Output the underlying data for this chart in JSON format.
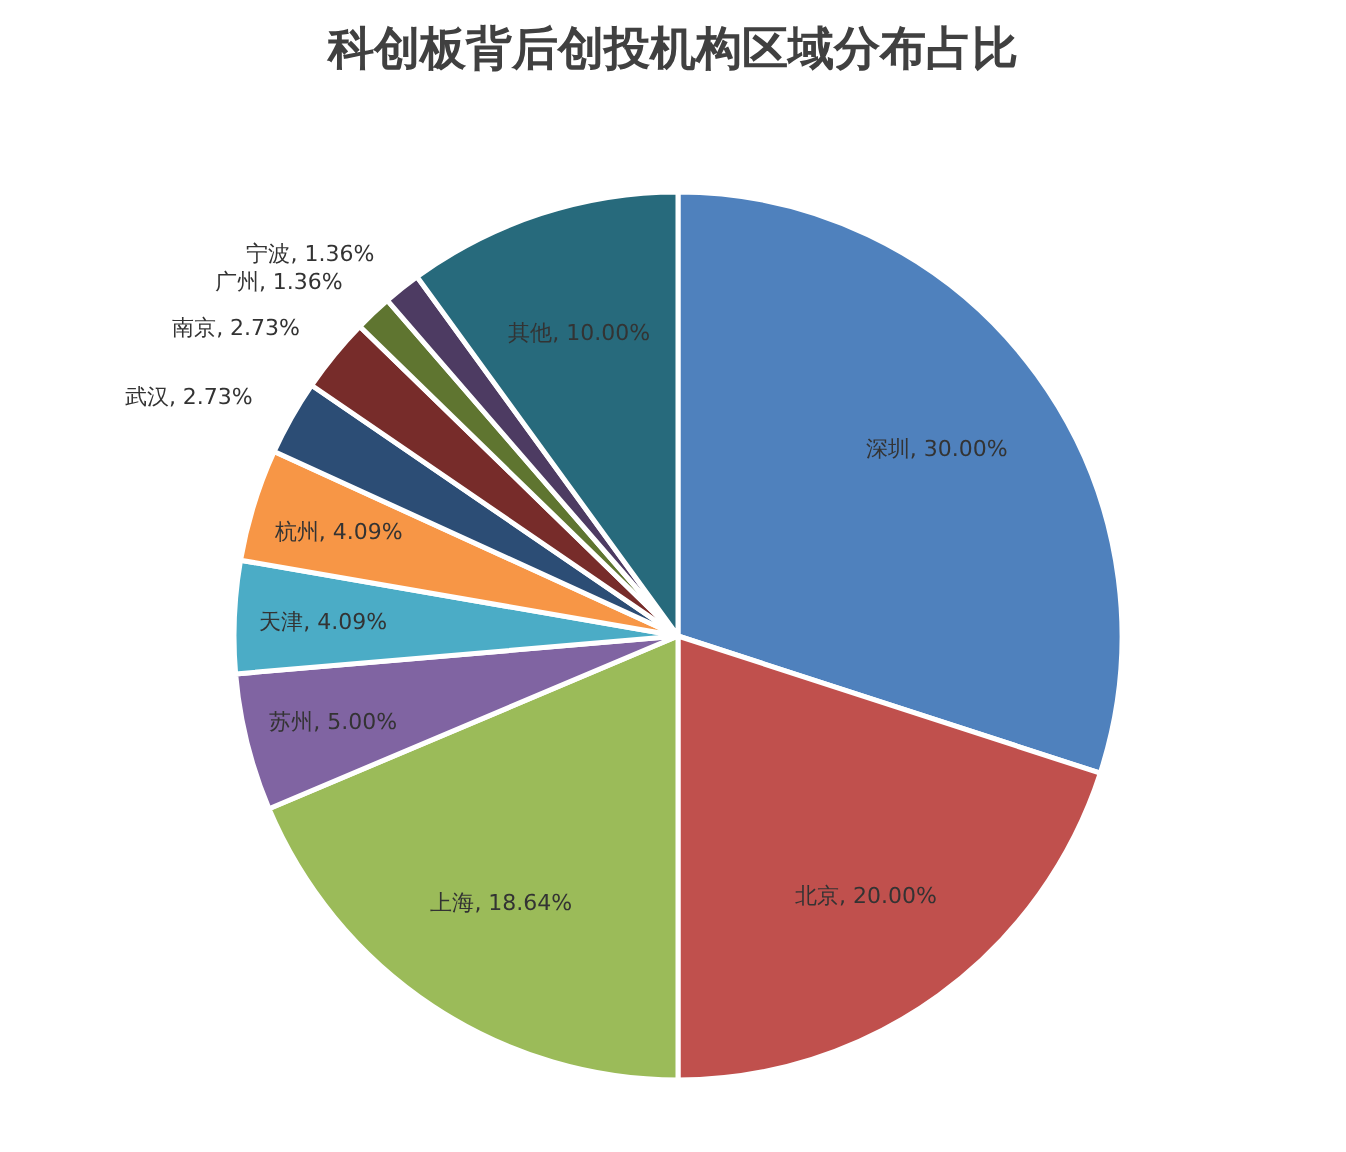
{
  "chart_data": {
    "type": "pie",
    "title": "科创板背后创投机构区域分布占比",
    "categories": [
      "深圳",
      "北京",
      "上海",
      "苏州",
      "天津",
      "杭州",
      "武汉",
      "南京",
      "广州",
      "宁波",
      "其他"
    ],
    "values": [
      30.0,
      20.0,
      18.64,
      5.0,
      4.09,
      4.09,
      2.73,
      2.73,
      1.36,
      1.36,
      10.0
    ],
    "value_labels": [
      "30.00%",
      "20.00%",
      "18.64%",
      "5.00%",
      "4.09%",
      "4.09%",
      "2.73%",
      "2.73%",
      "1.36%",
      "1.36%",
      "10.00%"
    ],
    "colors": [
      "#4f81bd",
      "#c0504d",
      "#9bbb59",
      "#8064a2",
      "#4bacc6",
      "#f79646",
      "#2c4d75",
      "#772c2a",
      "#5f7530",
      "#4d3b62",
      "#276a7c"
    ]
  }
}
